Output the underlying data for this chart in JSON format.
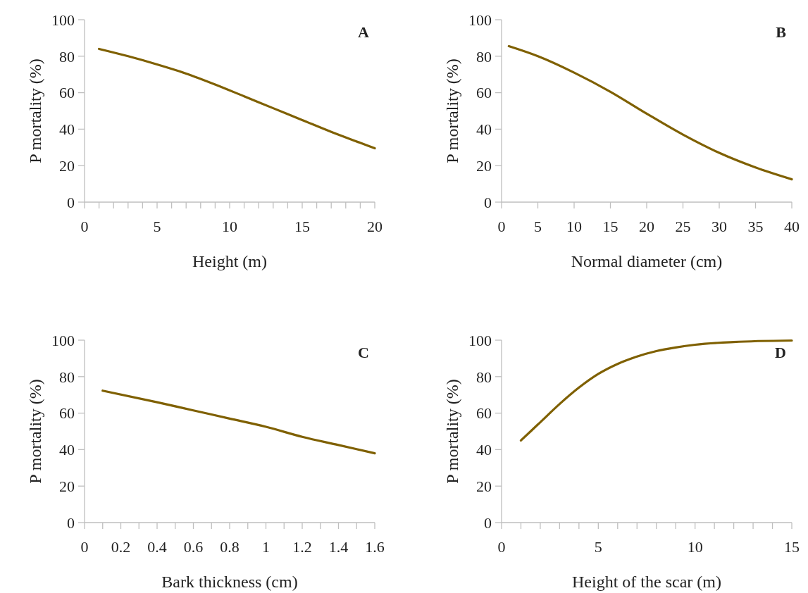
{
  "chart_data": [
    {
      "type": "line",
      "title": "A",
      "xlabel": "Height (m)",
      "ylabel": "P mortality (%)",
      "xlim": [
        0,
        20
      ],
      "ylim": [
        0,
        100
      ],
      "xticks": [
        0,
        {
          "value": 1,
          "label": null
        },
        {
          "value": 2,
          "label": null
        },
        {
          "value": 3,
          "label": null
        },
        {
          "value": 4,
          "label": null
        },
        5,
        {
          "value": 6,
          "label": null
        },
        {
          "value": 7,
          "label": null
        },
        {
          "value": 8,
          "label": null
        },
        {
          "value": 9,
          "label": null
        },
        10,
        {
          "value": 11,
          "label": null
        },
        {
          "value": 12,
          "label": null
        },
        {
          "value": 13,
          "label": null
        },
        {
          "value": 14,
          "label": null
        },
        15,
        {
          "value": 16,
          "label": null
        },
        {
          "value": 17,
          "label": null
        },
        {
          "value": 18,
          "label": null
        },
        {
          "value": 19,
          "label": null
        },
        20
      ],
      "yticks": [
        0,
        20,
        40,
        60,
        80,
        100
      ],
      "grid": false,
      "marker": "none",
      "line_style": "solid",
      "series": [
        {
          "color": "#7f6000",
          "x": [
            1,
            3,
            5,
            7,
            9,
            11,
            13,
            15,
            17,
            19,
            20
          ],
          "values": [
            84,
            80,
            75.5,
            70.5,
            64.5,
            58,
            51.5,
            45,
            38.5,
            32.5,
            29.5
          ]
        }
      ]
    },
    {
      "type": "line",
      "title": "B",
      "xlabel": "Normal diameter (cm)",
      "ylabel": "P mortality (%)",
      "xlim": [
        0,
        40
      ],
      "ylim": [
        0,
        100
      ],
      "xticks": [
        0,
        5,
        10,
        15,
        20,
        25,
        30,
        35,
        40
      ],
      "yticks": [
        0,
        20,
        40,
        60,
        80,
        100
      ],
      "grid": false,
      "marker": "none",
      "line_style": "solid",
      "series": [
        {
          "color": "#7f6000",
          "x": [
            1,
            5,
            10,
            15,
            20,
            25,
            30,
            35,
            40
          ],
          "values": [
            85.5,
            80,
            71,
            60.5,
            48.5,
            37,
            27,
            19,
            12.5
          ]
        }
      ]
    },
    {
      "type": "line",
      "title": "C",
      "xlabel": "Bark thickness (cm)",
      "ylabel": "P mortality (%)",
      "xlim": [
        0,
        1.6
      ],
      "ylim": [
        0,
        100
      ],
      "xticks": [
        0,
        {
          "value": 0.1,
          "label": null
        },
        0.2,
        {
          "value": 0.3,
          "label": null
        },
        0.4,
        {
          "value": 0.5,
          "label": null
        },
        0.6,
        {
          "value": 0.7,
          "label": null
        },
        0.8,
        {
          "value": 0.9,
          "label": null
        },
        1,
        {
          "value": 1.1,
          "label": null
        },
        1.2,
        {
          "value": 1.3,
          "label": null
        },
        1.4,
        {
          "value": 1.5,
          "label": null
        },
        1.6
      ],
      "yticks": [
        0,
        20,
        40,
        60,
        80,
        100
      ],
      "grid": false,
      "marker": "none",
      "line_style": "solid",
      "series": [
        {
          "color": "#7f6000",
          "x": [
            0.1,
            0.4,
            0.6,
            0.8,
            1.0,
            1.2,
            1.4,
            1.6
          ],
          "values": [
            72.3,
            66,
            61.5,
            57,
            52.5,
            47,
            42.5,
            38
          ]
        }
      ]
    },
    {
      "type": "line",
      "title": "D",
      "xlabel": "Height of the scar (m)",
      "ylabel": "P mortality (%)",
      "xlim": [
        0,
        15
      ],
      "ylim": [
        0,
        100
      ],
      "xticks": [
        0,
        {
          "value": 1,
          "label": null
        },
        {
          "value": 2,
          "label": null
        },
        {
          "value": 3,
          "label": null
        },
        {
          "value": 4,
          "label": null
        },
        5,
        {
          "value": 6,
          "label": null
        },
        {
          "value": 7,
          "label": null
        },
        {
          "value": 8,
          "label": null
        },
        {
          "value": 9,
          "label": null
        },
        10,
        {
          "value": 11,
          "label": null
        },
        {
          "value": 12,
          "label": null
        },
        {
          "value": 13,
          "label": null
        },
        {
          "value": 14,
          "label": null
        },
        15
      ],
      "yticks": [
        0,
        20,
        40,
        60,
        80,
        100
      ],
      "grid": false,
      "marker": "none",
      "line_style": "solid",
      "series": [
        {
          "color": "#7f6000",
          "x": [
            1,
            2,
            3,
            4,
            5,
            6,
            7,
            8,
            9,
            10,
            12,
            15
          ],
          "values": [
            45,
            55,
            65,
            74,
            81.5,
            87,
            91,
            94,
            96,
            97.5,
            99,
            99.8
          ]
        }
      ]
    }
  ]
}
